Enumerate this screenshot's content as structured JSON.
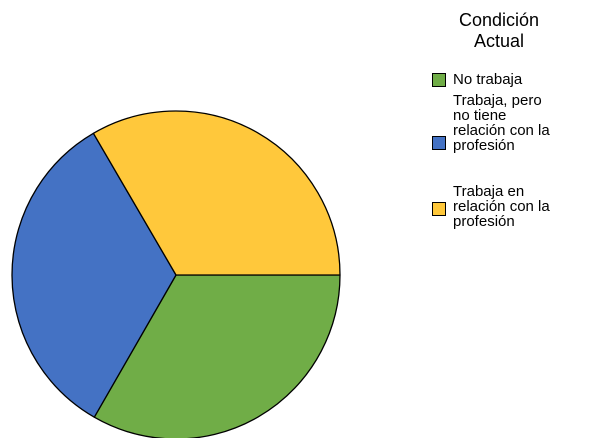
{
  "chart_data": {
    "type": "pie",
    "title": "",
    "legend_title": "Condición\nActual",
    "legend_placement": "right",
    "series": [
      {
        "name": "No trabaja",
        "value": 33.3,
        "color": "#70AD47"
      },
      {
        "name": "Trabaja, pero no tiene relación con la profesión",
        "value": 33.3,
        "color": "#4472C4"
      },
      {
        "name": "Trabaja en relación con la profesión",
        "value": 33.4,
        "color": "#FFC83B"
      }
    ]
  },
  "legend": {
    "title_line1": "Condición",
    "title_line2": "Actual",
    "items": [
      {
        "label": "No trabaja",
        "display": "No trabaja"
      },
      {
        "label": "Trabaja, pero no tiene relación con la profesión",
        "display": "Trabaja, pero\nno tiene\nrelación con la\nprofesión"
      },
      {
        "label": "Trabaja en relación con la profesión",
        "display": "Trabaja en\nrelación con la\nprofesión"
      }
    ]
  }
}
